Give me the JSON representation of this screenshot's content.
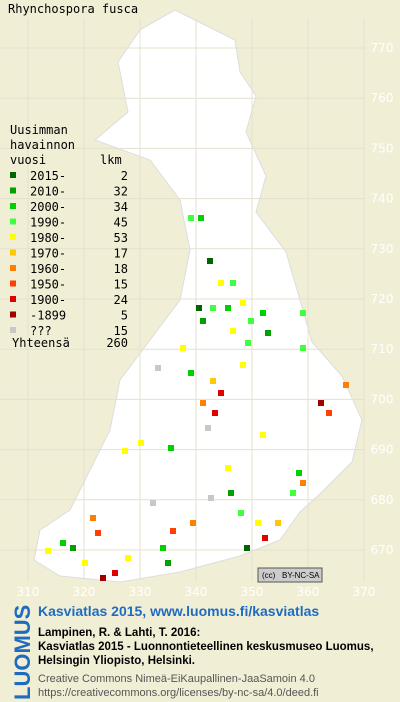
{
  "title": "Rhynchospora fusca",
  "legend": {
    "heading": [
      "Uusimman",
      "havainnon"
    ],
    "col1": "vuosi",
    "col2": "lkm",
    "rows": [
      {
        "label": "2015-",
        "count": 2,
        "color": "#006400"
      },
      {
        "label": "2010-",
        "count": 32,
        "color": "#00a000"
      },
      {
        "label": "2000-",
        "count": 34,
        "color": "#00d000"
      },
      {
        "label": "1990-",
        "count": 45,
        "color": "#40ff40"
      },
      {
        "label": "1980-",
        "count": 53,
        "color": "#ffff00"
      },
      {
        "label": "1970-",
        "count": 17,
        "color": "#ffc800"
      },
      {
        "label": "1960-",
        "count": 18,
        "color": "#ff8000"
      },
      {
        "label": "1950-",
        "count": 15,
        "color": "#ff4000"
      },
      {
        "label": "1900-",
        "count": 24,
        "color": "#e00000"
      },
      {
        "label": "-1899",
        "count": 5,
        "color": "#a00000"
      },
      {
        "label": "???",
        "count": 15,
        "color": "#c8c8c8"
      }
    ],
    "total": {
      "label": "Yhteensä",
      "count": 260
    }
  },
  "axes": {
    "x_labels": [
      310,
      320,
      330,
      340,
      350,
      360,
      370
    ],
    "y_labels": [
      770,
      760,
      750,
      740,
      730,
      720,
      710,
      700,
      690,
      680,
      670
    ]
  },
  "badge": "BY-NC-SA",
  "footer": {
    "logo": "LUOMUS",
    "headline": "Kasviatlas 2015, www.luomus.fi/kasviatlas",
    "citation": [
      "Lampinen, R. & Lahti, T. 2016:",
      "Kasviatlas 2015 - Luonnontieteellinen keskusmuseo Luomus,",
      "Helsingin Yliopisto, Helsinki."
    ],
    "license": [
      "Creative Commons Nimeä-EiKaupallinen-JaaSamoin 4.0",
      "https://creativecommons.org/licenses/by-nc-sa/4.0/deed.fi"
    ]
  }
}
